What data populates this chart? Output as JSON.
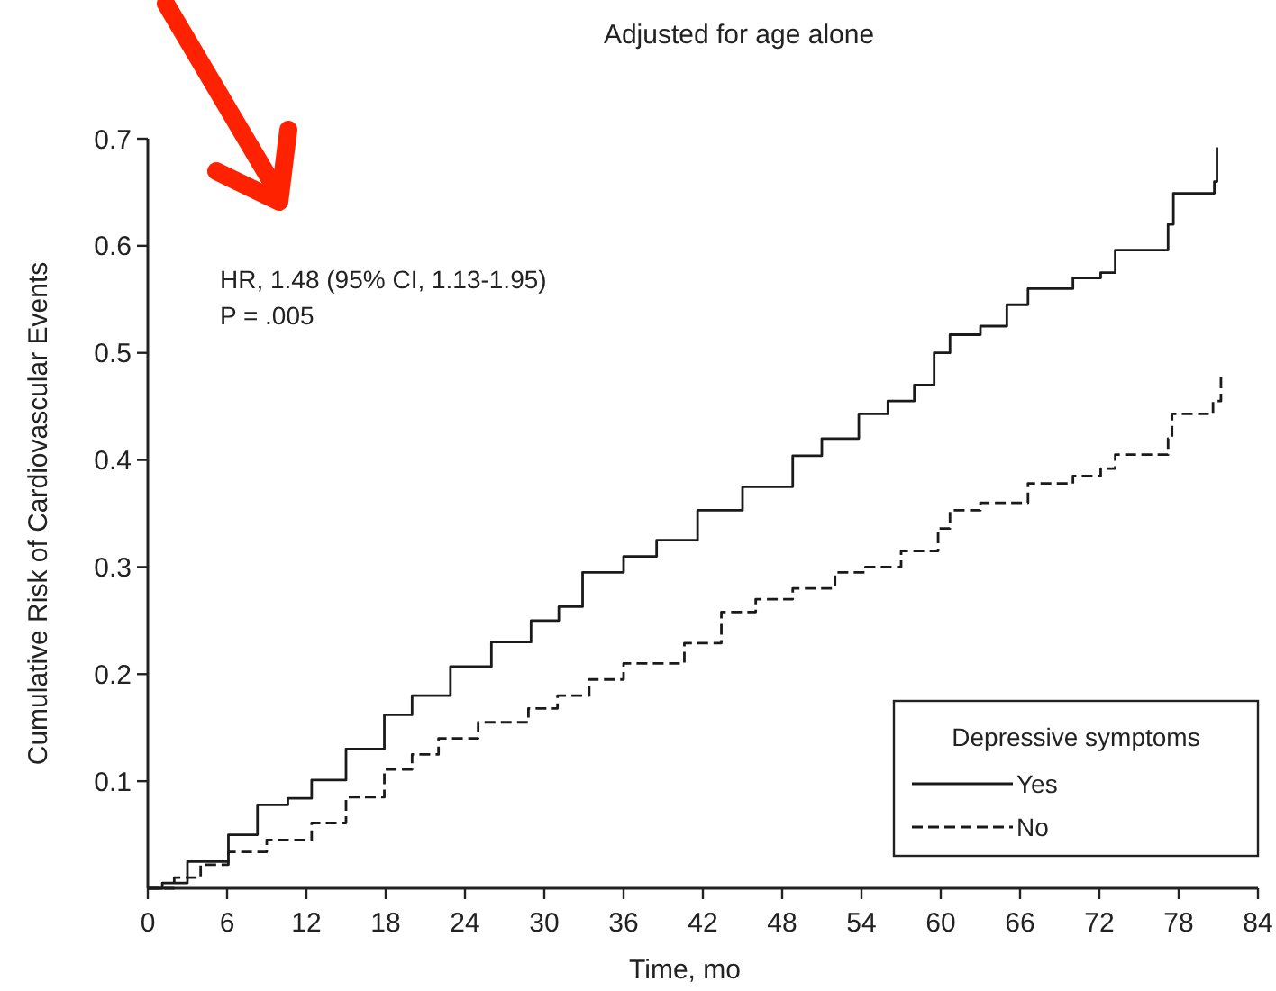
{
  "chart_data": {
    "type": "step",
    "title": "Adjusted for age alone",
    "xlabel": "Time, mo",
    "ylabel": "Cumulative Risk of Cardiovascular Events",
    "legend_title": "Depressive symptoms",
    "legend": "bottom right",
    "grid": false,
    "annotations": [
      "HR, 1.48 (95% CI, 1.13-1.95)",
      "P = .005"
    ],
    "xlim": [
      0,
      84
    ],
    "xticks": [
      0,
      6,
      12,
      18,
      24,
      30,
      36,
      42,
      48,
      54,
      60,
      66,
      72,
      78,
      84
    ],
    "ylim": [
      0,
      0.7
    ],
    "yticks": [
      0.1,
      0.2,
      0.3,
      0.4,
      0.5,
      0.6,
      0.7
    ],
    "series": [
      {
        "name": "Yes",
        "color": "#1a1a1a",
        "line_style": "solid",
        "x": [
          0,
          1.1,
          3,
          6.1,
          8.3,
          10.6,
          12.4,
          15,
          17.9,
          20,
          22.9,
          26,
          29,
          31.1,
          32.9,
          36,
          38.5,
          41.6,
          45,
          48.8,
          51,
          53.8,
          56,
          58,
          59.5,
          60.7,
          63,
          65,
          66.6,
          70,
          72.1,
          73.2,
          77.2,
          77.6,
          80.7,
          80.9
        ],
        "values": [
          0,
          0.005,
          0.025,
          0.05,
          0.078,
          0.084,
          0.101,
          0.13,
          0.162,
          0.18,
          0.207,
          0.23,
          0.25,
          0.263,
          0.295,
          0.31,
          0.325,
          0.353,
          0.375,
          0.404,
          0.42,
          0.443,
          0.455,
          0.47,
          0.5,
          0.517,
          0.525,
          0.545,
          0.56,
          0.57,
          0.575,
          0.596,
          0.62,
          0.649,
          0.66,
          0.692
        ]
      },
      {
        "name": "No",
        "color": "#1a1a1a",
        "line_style": "dashed",
        "x": [
          0,
          2,
          4,
          6.1,
          9,
          12.4,
          15,
          17.9,
          20,
          22,
          25,
          28.8,
          31,
          33.4,
          36,
          40.6,
          43.4,
          46,
          48.8,
          52,
          54.3,
          57,
          59.8,
          60.7,
          63,
          66.6,
          70,
          72.1,
          73.2,
          77.2,
          77.5,
          80.6,
          81.2
        ],
        "values": [
          0,
          0.01,
          0.022,
          0.034,
          0.045,
          0.061,
          0.085,
          0.111,
          0.125,
          0.14,
          0.155,
          0.168,
          0.18,
          0.195,
          0.21,
          0.229,
          0.258,
          0.27,
          0.28,
          0.295,
          0.3,
          0.315,
          0.336,
          0.353,
          0.36,
          0.378,
          0.385,
          0.392,
          0.405,
          0.42,
          0.443,
          0.455,
          0.481
        ]
      }
    ]
  }
}
